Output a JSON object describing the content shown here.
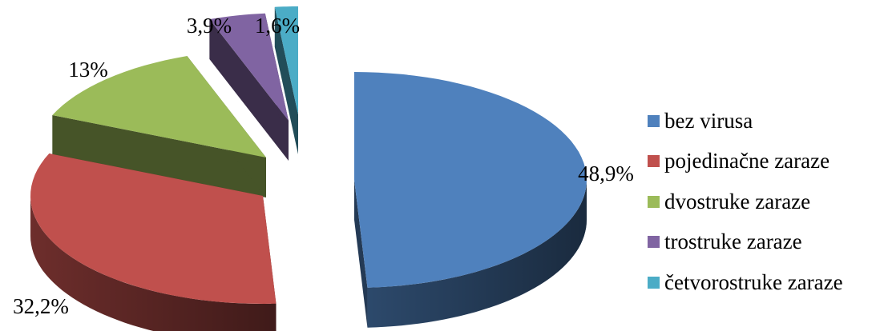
{
  "chart_data": {
    "type": "pie",
    "style": "3d-exploded",
    "legend_position": "right",
    "slices": [
      {
        "label": "bez virusa",
        "value": 48.9,
        "display": "48,9%",
        "color": "#4F81BD"
      },
      {
        "label": "pojedinačne zaraze",
        "value": 32.2,
        "display": "32,2%",
        "color": "#C0504D"
      },
      {
        "label": "dvostruke zaraze",
        "value": 13,
        "display": "13%",
        "color": "#9BBB59"
      },
      {
        "label": "trostruke zaraze",
        "value": 3.9,
        "display": "3,9%",
        "color": "#8064A2"
      },
      {
        "label": "četvorostruke zaraze",
        "value": 1.6,
        "display": "1,6%",
        "color": "#4BACC6"
      }
    ]
  }
}
